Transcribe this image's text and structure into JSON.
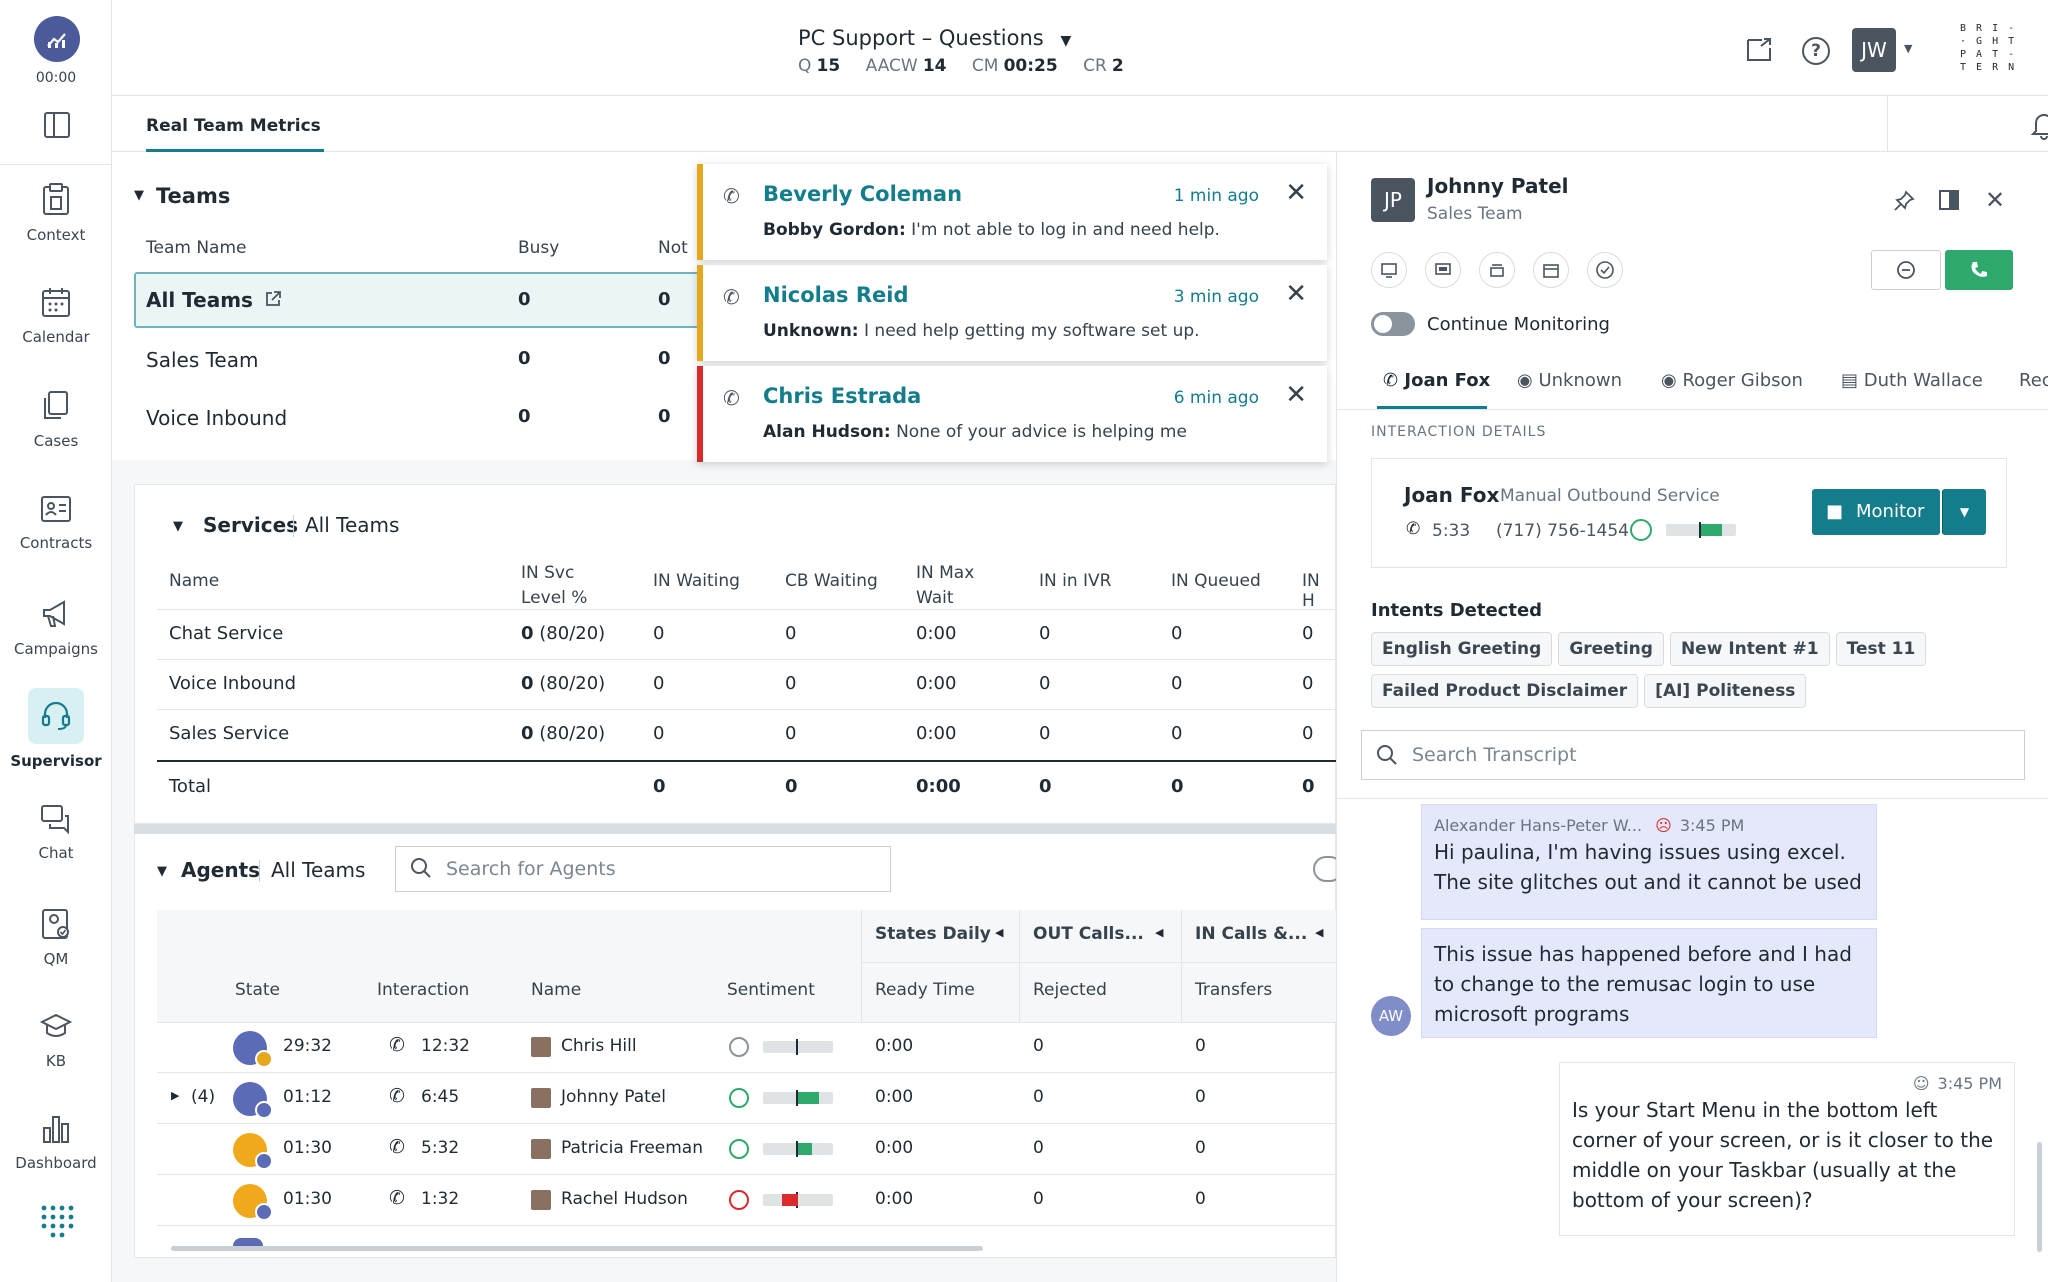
{
  "nav": {
    "timer": "00:00",
    "items": [
      {
        "label": "Context",
        "icon": "clipboard-icon"
      },
      {
        "label": "Calendar",
        "icon": "calendar-icon"
      },
      {
        "label": "Cases",
        "icon": "cases-icon"
      },
      {
        "label": "Contracts",
        "icon": "contract-icon"
      },
      {
        "label": "Campaigns",
        "icon": "megaphone-icon"
      },
      {
        "label": "Supervisor",
        "icon": "headset-icon"
      },
      {
        "label": "Chat",
        "icon": "chat-icon"
      },
      {
        "label": "QM",
        "icon": "qm-icon"
      },
      {
        "label": "KB",
        "icon": "graduation-cap-icon"
      },
      {
        "label": "Dashboard",
        "icon": "bar-chart-icon"
      }
    ]
  },
  "header": {
    "queue_title": "PC Support – Questions",
    "metrics": [
      {
        "label": "Q",
        "value": "15"
      },
      {
        "label": "AACW",
        "value": "14"
      },
      {
        "label": "CM",
        "value": "00:25"
      },
      {
        "label": "CR",
        "value": "2"
      }
    ],
    "user_initials": "JW",
    "logo_lines": [
      "B R I -",
      "· G H T",
      "P A T -",
      "T E R N"
    ]
  },
  "tabs": {
    "active": "Real Team Metrics"
  },
  "teams": {
    "title": "Teams",
    "columns": [
      "Team Name",
      "Busy",
      "Not"
    ],
    "rows": [
      {
        "name": "All Teams",
        "busy": "0",
        "not": "0"
      },
      {
        "name": "Sales Team",
        "busy": "0",
        "not": "0"
      },
      {
        "name": "Voice Inbound",
        "busy": "0",
        "not": "0"
      }
    ]
  },
  "notifications": [
    {
      "name": "Beverly Coleman",
      "time": "1 min ago",
      "from": "Bobby Gordon:",
      "text": "I'm not able to log in and need help.",
      "color": "#e5a81c"
    },
    {
      "name": "Nicolas Reid",
      "time": "3 min ago",
      "from": "Unknown:",
      "text": "I need help getting my software set up.",
      "color": "#e5a81c"
    },
    {
      "name": "Chris Estrada",
      "time": "6 min ago",
      "from": "Alan Hudson:",
      "text": "None of your advice is helping me",
      "color": "#d92b2b"
    }
  ],
  "services": {
    "title": "Services",
    "scope": "All Teams",
    "columns": [
      "Name",
      "IN Svc Level %",
      "IN Waiting",
      "CB Waiting",
      "IN Max Wait",
      "IN in IVR",
      "IN Queued",
      "IN H"
    ],
    "col_lines": [
      [
        "Name"
      ],
      [
        "IN Svc",
        "Level %"
      ],
      [
        "IN Waiting"
      ],
      [
        "CB Waiting"
      ],
      [
        "IN Max",
        "Wait"
      ],
      [
        "IN in IVR"
      ],
      [
        "IN Queued"
      ],
      [
        "IN H"
      ]
    ],
    "rows": [
      {
        "name": "Chat Service",
        "svc_bold": "0",
        "svc": "(80/20)",
        "in_waiting": "0",
        "cb_waiting": "0",
        "max_wait": "0:00",
        "ivr": "0",
        "queued": "0",
        "inh": "0"
      },
      {
        "name": "Voice Inbound",
        "svc_bold": "0",
        "svc": "(80/20)",
        "in_waiting": "0",
        "cb_waiting": "0",
        "max_wait": "0:00",
        "ivr": "0",
        "queued": "0",
        "inh": "0"
      },
      {
        "name": "Sales Service",
        "svc_bold": "0",
        "svc": "(80/20)",
        "in_waiting": "0",
        "cb_waiting": "0",
        "max_wait": "0:00",
        "ivr": "0",
        "queued": "0",
        "inh": "0"
      }
    ],
    "total": {
      "name": "Total",
      "in_waiting": "0",
      "cb_waiting": "0",
      "max_wait": "0:00",
      "ivr": "0",
      "queued": "0",
      "inh": "0"
    }
  },
  "agents": {
    "title": "Agents",
    "scope": "All Teams",
    "search_placeholder": "Search for Agents",
    "group_headers": [
      "States Daily",
      "OUT Calls...",
      "IN Calls &..."
    ],
    "columns": [
      "State",
      "Interaction",
      "Name",
      "Sentiment",
      "Ready Time",
      "Rejected",
      "Transfers"
    ],
    "rows": [
      {
        "expand": "",
        "state_time": "29:32",
        "interaction": "12:32",
        "name": "Chris Hill",
        "sentiment": "neutral",
        "sentiment_level": 0,
        "ready": "0:00",
        "rejected": "0",
        "transfers": "0",
        "badge_color": "#e5a81c"
      },
      {
        "expand": "(4)",
        "state_time": "01:12",
        "interaction": "6:45",
        "name": "Johnny Patel",
        "sentiment": "positive",
        "sentiment_level": 0.6,
        "ready": "0:00",
        "rejected": "0",
        "transfers": "0",
        "badge_color": "#5b6bb5"
      },
      {
        "expand": "",
        "state_time": "01:30",
        "interaction": "5:32",
        "name": "Patricia Freeman",
        "sentiment": "positive",
        "sentiment_level": 0.4,
        "ready": "0:00",
        "rejected": "0",
        "transfers": "0",
        "badge_color": "#5b6bb5"
      },
      {
        "expand": "",
        "state_time": "01:30",
        "interaction": "1:32",
        "name": "Rachel Hudson",
        "sentiment": "negative",
        "sentiment_level": -0.45,
        "ready": "0:00",
        "rejected": "0",
        "transfers": "0",
        "badge_color": "#5b6bb5"
      }
    ]
  },
  "panel": {
    "initials": "JP",
    "name": "Johnny Patel",
    "team": "Sales Team",
    "continue_monitoring": "Continue Monitoring",
    "interaction_tabs": [
      "Joan Fox",
      "Unknown",
      "Roger Gibson",
      "Duth Wallace",
      "Rec"
    ],
    "section_label": "INTERACTION DETAILS",
    "interaction": {
      "name": "Joan Fox",
      "service": "Manual Outbound Service",
      "duration": "5:33",
      "phone": "(717) 756-1454",
      "sentiment_level": 0.6,
      "monitor_label": "Monitor"
    },
    "intents_title": "Intents Detected",
    "intents": [
      "English Greeting",
      "Greeting",
      "New Intent #1",
      "Test 11",
      "Failed Product Disclaimer",
      "[AI] Politeness"
    ],
    "search_placeholder": "Search Transcript",
    "messages": [
      {
        "author": "Alexander Hans-Peter W...",
        "time": "3:45 PM",
        "text": "Hi paulina, I'm having issues using excel. The site glitches out and it cannot be used"
      },
      {
        "text": "This issue has happened before and I had to change to the remusac login to use microsoft programs",
        "avatar": "AW"
      },
      {
        "time": "3:45 PM",
        "text": "Is your Start Menu in the bottom left corner of your screen, or is it closer to the middle on your Taskbar (usually at the bottom of your screen)?"
      }
    ]
  },
  "colors": {
    "accent": "#137d8c",
    "green": "#2fa86b",
    "red": "#d92b2b",
    "yellow": "#e5a81c"
  }
}
